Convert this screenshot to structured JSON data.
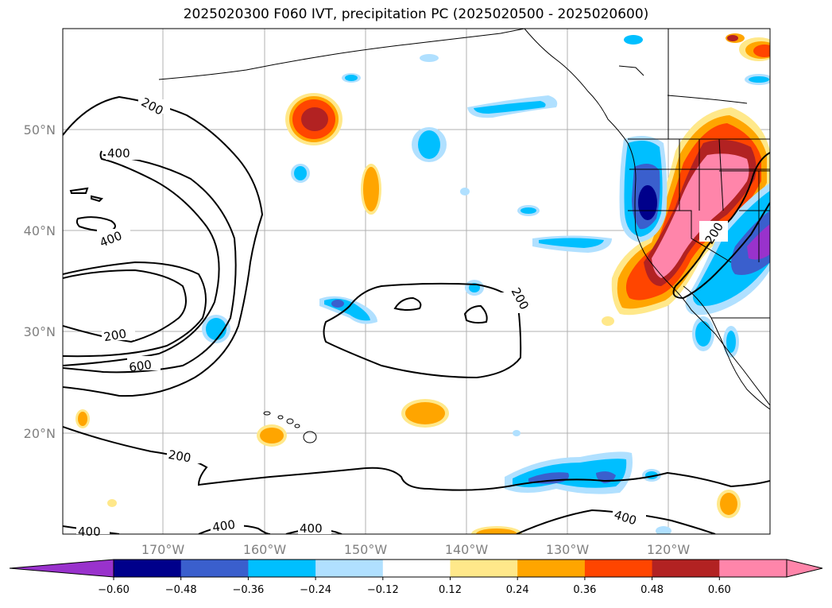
{
  "title": "2025020300 F060 IVT, precipitation PC (2025020500 - 2025020600)",
  "map": {
    "lat_labels": [
      "50°N",
      "40°N",
      "30°N",
      "20°N"
    ],
    "lon_labels": [
      "170°W",
      "160°W",
      "150°W",
      "140°W",
      "130°W",
      "120°W"
    ],
    "contour_labels": [
      {
        "id": "c200a",
        "text": "200"
      },
      {
        "id": "c400a",
        "text": "400"
      },
      {
        "id": "c400b",
        "text": "400"
      },
      {
        "id": "c200b",
        "text": "200"
      },
      {
        "id": "c600",
        "text": "600"
      },
      {
        "id": "c200c",
        "text": "200"
      },
      {
        "id": "c200d",
        "text": "200"
      },
      {
        "id": "c200e",
        "text": "200"
      },
      {
        "id": "c400c",
        "text": "400"
      },
      {
        "id": "c400d",
        "text": "400"
      },
      {
        "id": "c400e",
        "text": "400"
      },
      {
        "id": "c400f",
        "text": "400"
      }
    ]
  },
  "colorbar": {
    "ticks": [
      "−0.60",
      "−0.48",
      "−0.36",
      "−0.24",
      "−0.12",
      "0.12",
      "0.24",
      "0.36",
      "0.48",
      "0.60"
    ],
    "colors": [
      "#9932cc",
      "#00008b",
      "#3a5fcd",
      "#00bfff",
      "#b0e0ff",
      "#ffffff",
      "#ffe88a",
      "#ffa500",
      "#ff4500",
      "#b22222",
      "#ff85aa",
      "#ff85aa"
    ]
  }
}
